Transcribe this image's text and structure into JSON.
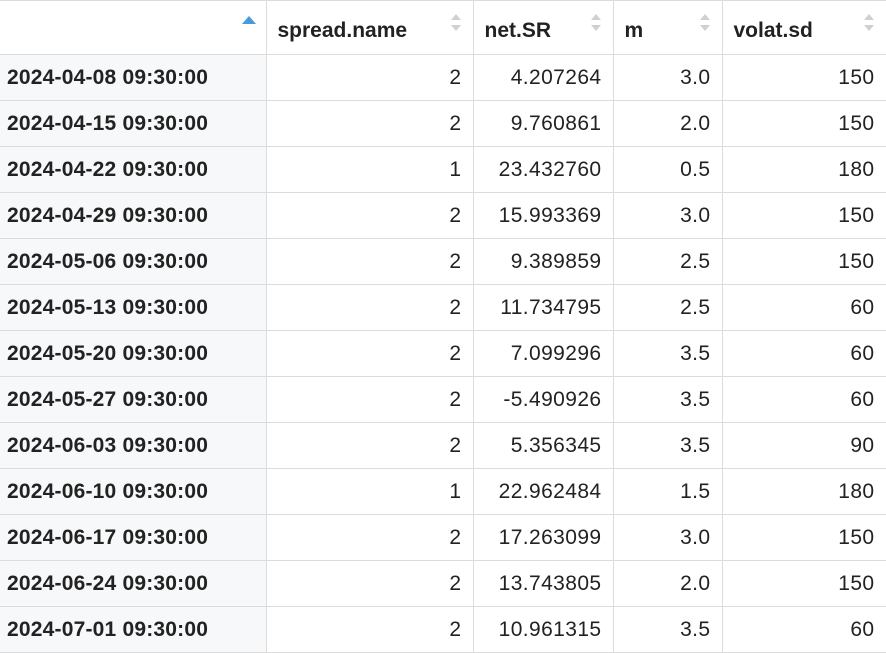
{
  "table": {
    "columns": [
      "",
      "spread.name",
      "net.SR",
      "m",
      "volat.sd"
    ],
    "rows": [
      {
        "name": "2024-04-08 09:30:00",
        "spread_name": "2",
        "net_sr": "4.207264",
        "m": "3.0",
        "volat_sd": "150"
      },
      {
        "name": "2024-04-15 09:30:00",
        "spread_name": "2",
        "net_sr": "9.760861",
        "m": "2.0",
        "volat_sd": "150"
      },
      {
        "name": "2024-04-22 09:30:00",
        "spread_name": "1",
        "net_sr": "23.432760",
        "m": "0.5",
        "volat_sd": "180"
      },
      {
        "name": "2024-04-29 09:30:00",
        "spread_name": "2",
        "net_sr": "15.993369",
        "m": "3.0",
        "volat_sd": "150"
      },
      {
        "name": "2024-05-06 09:30:00",
        "spread_name": "2",
        "net_sr": "9.389859",
        "m": "2.5",
        "volat_sd": "150"
      },
      {
        "name": "2024-05-13 09:30:00",
        "spread_name": "2",
        "net_sr": "11.734795",
        "m": "2.5",
        "volat_sd": "60"
      },
      {
        "name": "2024-05-20 09:30:00",
        "spread_name": "2",
        "net_sr": "7.099296",
        "m": "3.5",
        "volat_sd": "60"
      },
      {
        "name": "2024-05-27 09:30:00",
        "spread_name": "2",
        "net_sr": "-5.490926",
        "m": "3.5",
        "volat_sd": "60"
      },
      {
        "name": "2024-06-03 09:30:00",
        "spread_name": "2",
        "net_sr": "5.356345",
        "m": "3.5",
        "volat_sd": "90"
      },
      {
        "name": "2024-06-10 09:30:00",
        "spread_name": "1",
        "net_sr": "22.962484",
        "m": "1.5",
        "volat_sd": "180"
      },
      {
        "name": "2024-06-17 09:30:00",
        "spread_name": "2",
        "net_sr": "17.263099",
        "m": "3.0",
        "volat_sd": "150"
      },
      {
        "name": "2024-06-24 09:30:00",
        "spread_name": "2",
        "net_sr": "13.743805",
        "m": "2.0",
        "volat_sd": "150"
      },
      {
        "name": "2024-07-01 09:30:00",
        "spread_name": "2",
        "net_sr": "10.961315",
        "m": "3.5",
        "volat_sd": "60"
      }
    ]
  },
  "colors": {
    "sort_active": "#4a9ad9",
    "sort_inactive": "#d0d0d0",
    "rowname_bg": "#f7f8f9",
    "border": "#dcdcdc"
  }
}
